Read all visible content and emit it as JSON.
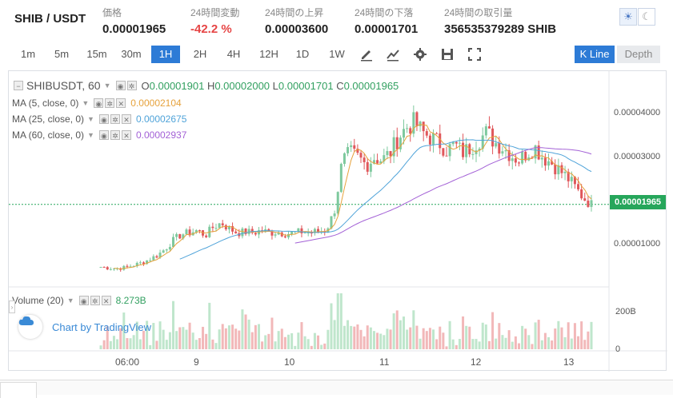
{
  "header": {
    "pair": "SHIB / USDT",
    "stats": [
      {
        "label": "価格",
        "value": "0.00001965",
        "color": "normal"
      },
      {
        "label": "24時間変動",
        "value": "-42.2 %",
        "color": "red"
      },
      {
        "label": "24時間の上昇",
        "value": "0.00003600",
        "color": "normal"
      },
      {
        "label": "24時間の下落",
        "value": "0.00001701",
        "color": "normal"
      },
      {
        "label": "24時間の取引量",
        "value": "356535379289 SHIB",
        "color": "normal"
      }
    ],
    "theme_light_icon": "sun-icon",
    "theme_dark_icon": "moon-icon"
  },
  "toolbar": {
    "timeframes": [
      "1m",
      "5m",
      "15m",
      "30m",
      "1H",
      "2H",
      "4H",
      "12H",
      "1D",
      "1W"
    ],
    "active_timeframe": "1H",
    "tools": [
      "pencil-icon",
      "indicator-chart-icon",
      "gear-icon",
      "save-icon",
      "fullscreen-icon"
    ],
    "views": [
      "K Line",
      "Depth"
    ],
    "active_view": "K Line"
  },
  "chart": {
    "symbol": "SHIBUSDT, 60",
    "ohlc": {
      "o_label": "O",
      "o": "0.00001901",
      "h_label": "H",
      "h": "0.00002000",
      "l_label": "L",
      "l": "0.00001701",
      "c_label": "C",
      "c": "0.00001965"
    },
    "ma": [
      {
        "label": "MA (5, close, 0)",
        "value": "0.00002104",
        "color": "#e6a23c"
      },
      {
        "label": "MA (25, close, 0)",
        "value": "0.00002675",
        "color": "#4fa3d9"
      },
      {
        "label": "MA (60, close, 0)",
        "value": "0.00002937",
        "color": "#a361d6"
      }
    ],
    "volume_label": "Volume (20)",
    "volume_value": "8.273B",
    "watermark": "Chart by TradingView",
    "last_price_tag": "0.00001965",
    "y_ticks": [
      "0.00004000",
      "0.00003000",
      "0.00001000"
    ],
    "volume_ticks": [
      "200B",
      "0"
    ],
    "x_ticks": [
      "06:00",
      "9",
      "10",
      "11",
      "12",
      "13"
    ],
    "colors": {
      "up": "#7ec99e",
      "down": "#e0575b",
      "up_vol": "#bfe6cc",
      "down_vol": "#f2b8b9"
    }
  },
  "chart_data": {
    "type": "candlestick",
    "title": "SHIBUSDT, 60",
    "close_path": [
      7.2e-06,
      7e-06,
      6.9e-06,
      7.1e-06,
      7.5e-06,
      8e-06,
      8.7e-06,
      9.5e-06,
      1.08e-05,
      1.25e-05,
      1.37e-05,
      1.4e-05,
      1.45e-05,
      1.35e-05,
      1.52e-05,
      1.6e-05,
      1.48e-05,
      1.4e-05,
      1.42e-05,
      1.4e-05,
      1.45e-05,
      1.4e-05,
      1.42e-05,
      1.38e-05,
      1.4e-05,
      1.42e-05,
      1.4e-05,
      1.43e-05,
      1.45e-05,
      1.8e-05,
      2.8e-05,
      3e-05,
      2.9e-05,
      2.75e-05,
      2.9e-05,
      2.85e-05,
      3e-05,
      3.3e-05,
      3.5e-05,
      3.6e-05,
      3.4e-05,
      3.3e-05,
      3.2e-05,
      3.05e-05,
      3.15e-05,
      3e-05,
      3.1e-05,
      3.25e-05,
      3.4e-05,
      3.2e-05,
      3.1e-05,
      2.95e-05,
      2.85e-05,
      3e-05,
      3.1e-05,
      2.9e-05,
      2.8e-05,
      2.65e-05,
      2.5e-05,
      2.3e-05,
      2.1e-05,
      1.96e-05
    ]
  }
}
